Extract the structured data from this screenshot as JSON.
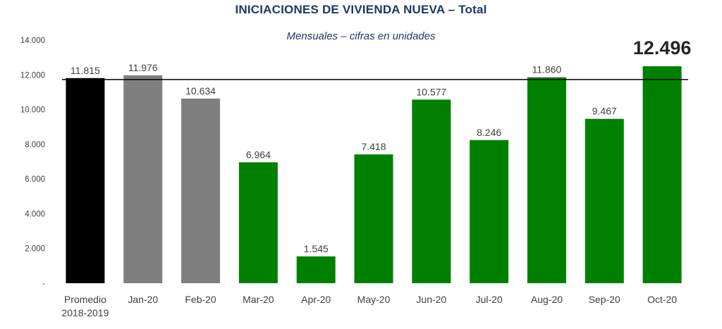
{
  "header": {
    "title_main": "INICIACIONES DE VIVIENDA NUEVA",
    "title_dash": " – ",
    "title_emph": "Total",
    "subtitle": "Mensuales – cifras en unidades"
  },
  "chart_data": {
    "type": "bar",
    "categories": [
      "Promedio 2018-2019",
      "Jan-20",
      "Feb-20",
      "Mar-20",
      "Apr-20",
      "May-20",
      "Jun-20",
      "Jul-20",
      "Aug-20",
      "Sep-20",
      "Oct-20"
    ],
    "category_lines": [
      [
        "Promedio",
        "2018-2019"
      ],
      [
        "Jan-20"
      ],
      [
        "Feb-20"
      ],
      [
        "Mar-20"
      ],
      [
        "Apr-20"
      ],
      [
        "May-20"
      ],
      [
        "Jun-20"
      ],
      [
        "Jul-20"
      ],
      [
        "Aug-20"
      ],
      [
        "Sep-20"
      ],
      [
        "Oct-20"
      ]
    ],
    "values": [
      11815,
      11976,
      10634,
      6964,
      1545,
      7418,
      10577,
      8246,
      11860,
      9467,
      12496
    ],
    "value_labels": [
      "11.815",
      "11.976",
      "10.634",
      "6.964",
      "1.545",
      "7.418",
      "10.577",
      "8.246",
      "11.860",
      "9.467",
      "12.496"
    ],
    "colors": [
      "#000000",
      "#7f7f7f",
      "#7f7f7f",
      "#008000",
      "#008000",
      "#008000",
      "#008000",
      "#008000",
      "#008000",
      "#008000",
      "#008000"
    ],
    "highlight_last_label": true,
    "reference_line": 11815,
    "ylim": [
      0,
      14000
    ],
    "yticks": [
      0,
      2000,
      4000,
      6000,
      8000,
      10000,
      12000,
      14000
    ],
    "ytick_labels": [
      "-",
      "2.000",
      "4.000",
      "6.000",
      "8.000",
      "10.000",
      "12.000",
      "14.000"
    ],
    "xlabel": "",
    "ylabel": "",
    "grid": false,
    "legend": "none"
  }
}
